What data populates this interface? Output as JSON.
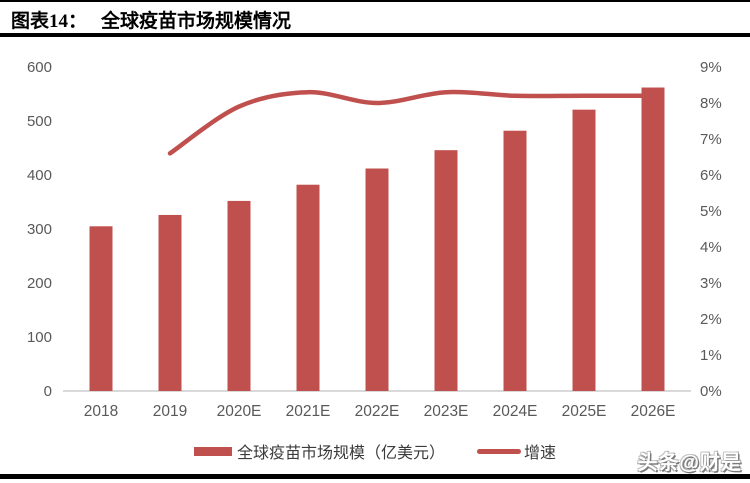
{
  "page": {
    "title_prefix": "图表14：",
    "title": "全球疫苗市场规模情况",
    "watermark": "头条@财是"
  },
  "colors": {
    "accent_red": "#C0504D",
    "axis_text": "#595959",
    "baseline": "#D9D9D9",
    "border_black": "#000000"
  },
  "chart_data": {
    "type": "bar",
    "subtype": "bar+line combo, dual axis",
    "title": "全球疫苗市场规模情况",
    "categories": [
      "2018",
      "2019",
      "2020E",
      "2021E",
      "2022E",
      "2023E",
      "2024E",
      "2025E",
      "2026E"
    ],
    "series": [
      {
        "name": "全球疫苗市场规模（亿美元）",
        "type": "bar",
        "axis": "left",
        "color": "#C0504D",
        "values": [
          305,
          326,
          352,
          382,
          412,
          446,
          482,
          521,
          562
        ]
      },
      {
        "name": "增速",
        "type": "line",
        "axis": "right",
        "color": "#C0504D",
        "values": [
          null,
          6.6,
          7.9,
          8.3,
          8.0,
          8.3,
          8.2,
          8.2,
          8.2
        ]
      }
    ],
    "left_axis": {
      "min": 0,
      "max": 600,
      "step": 100,
      "tick_labels": [
        "0",
        "100",
        "200",
        "300",
        "400",
        "500",
        "600"
      ]
    },
    "right_axis": {
      "min": 0,
      "max": 9,
      "step": 1,
      "unit": "%",
      "tick_labels": [
        "0%",
        "1%",
        "2%",
        "3%",
        "4%",
        "5%",
        "6%",
        "7%",
        "8%",
        "9%"
      ]
    },
    "grid": false,
    "legend_position": "bottom"
  }
}
